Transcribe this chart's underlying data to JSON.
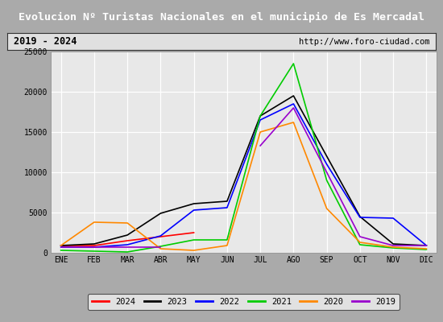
{
  "title": "Evolucion Nº Turistas Nacionales en el municipio de Es Mercadal",
  "subtitle_left": "2019 - 2024",
  "subtitle_right": "http://www.foro-ciudad.com",
  "months": [
    "ENE",
    "FEB",
    "MAR",
    "ABR",
    "MAY",
    "JUN",
    "JUL",
    "AGO",
    "SEP",
    "OCT",
    "NOV",
    "DIC"
  ],
  "ylim": [
    0,
    25000
  ],
  "yticks": [
    0,
    5000,
    10000,
    15000,
    20000,
    25000
  ],
  "series": {
    "2024": {
      "color": "#ff0000",
      "data": [
        900,
        900,
        1500,
        2000,
        2500,
        null,
        null,
        null,
        null,
        null,
        null,
        null
      ]
    },
    "2023": {
      "color": "#000000",
      "data": [
        900,
        1100,
        2200,
        4900,
        6100,
        6400,
        17000,
        19500,
        12000,
        4500,
        1100,
        900
      ]
    },
    "2022": {
      "color": "#0000ff",
      "data": [
        700,
        700,
        1000,
        2100,
        5300,
        5600,
        16500,
        18500,
        11000,
        4400,
        4300,
        900
      ]
    },
    "2021": {
      "color": "#00cc00",
      "data": [
        300,
        200,
        100,
        800,
        1600,
        1600,
        17000,
        23500,
        9000,
        1000,
        600,
        400
      ]
    },
    "2020": {
      "color": "#ff8800",
      "data": [
        900,
        3800,
        3700,
        500,
        300,
        900,
        15000,
        16200,
        5500,
        1300,
        700,
        500
      ]
    },
    "2019": {
      "color": "#9900cc",
      "data": [
        700,
        700,
        700,
        700,
        null,
        null,
        13300,
        18000,
        10000,
        2000,
        900,
        900
      ]
    }
  },
  "title_bg": "#4488bb",
  "title_color": "#ffffff",
  "subtitle_bg": "#e0e0e0",
  "plot_bg": "#e8e8e8",
  "grid_color": "#ffffff",
  "fig_bg": "#aaaaaa",
  "legend_bg": "#f0f0f0"
}
